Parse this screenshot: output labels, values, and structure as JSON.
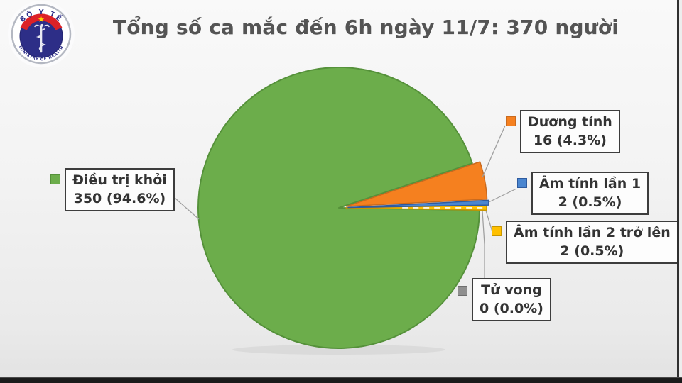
{
  "header": {
    "title": "Tổng số ca mắc đến 6h ngày 11/7: 370 người"
  },
  "logo": {
    "top_text": "BỘ Y TẾ",
    "bottom_text": "MINISTRY OF HEALTH"
  },
  "chart_data": {
    "type": "pie",
    "title": "Tổng số ca mắc đến 6h ngày 11/7: 370 người",
    "total": 370,
    "unit": "người",
    "slices": [
      {
        "label": "Dương tính",
        "value": 16,
        "pct": 4.3,
        "display": "16 (4.3%)",
        "color": "#F5801F",
        "border": "#C96A1E",
        "explode": 11
      },
      {
        "label": "Âm tính lần 1",
        "value": 2,
        "pct": 0.5,
        "display": "2 (0.5%)",
        "color": "#4A86D0",
        "border": "#2E5B9F",
        "explode": 13
      },
      {
        "label": "Âm tính lần 2 trở lên",
        "value": 2,
        "pct": 0.5,
        "display": "2 (0.5%)",
        "color": "#FFC000",
        "border": "#C89600",
        "explode": 10
      },
      {
        "label": "Tử vong",
        "value": 0,
        "pct": 0.0,
        "display": "0 (0.0%)",
        "color": "#8F8F8F",
        "border": "#6E6E6E",
        "explode": 0
      },
      {
        "label": "Điều trị khỏi",
        "value": 350,
        "pct": 94.6,
        "display": "350 (94.6%)",
        "color": "#6CAD4B",
        "border": "#55913A",
        "explode": 0
      }
    ],
    "layout": {
      "center": [
        477,
        293
      ],
      "radius": 198,
      "start_angle_deg": 18.5,
      "direction": "clockwise",
      "legend_position": "right-and-left-callouts",
      "grid": false
    }
  }
}
